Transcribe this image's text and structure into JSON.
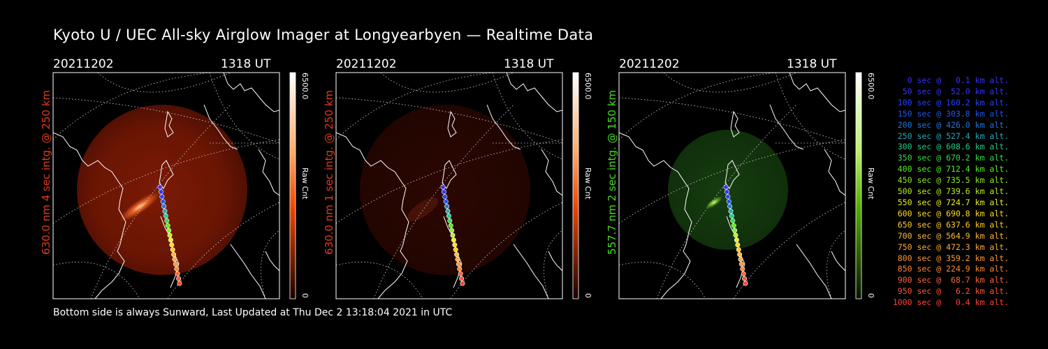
{
  "title": "Kyoto U / UEC All-sky Airglow Imager at Longyearbyen — Realtime Data",
  "footer": "Bottom side is always Sunward, Last Updated at Thu Dec  2 13:18:04 2021 in UTC",
  "panels": [
    {
      "date": "20211202",
      "time": "1318 UT",
      "side_label": "630.0 nm 4 sec intg. @ 250 km",
      "label_color": "#e23a1a",
      "cb_max": "6500.0",
      "cb_min": "0",
      "cb_unit": "Raw Cnt",
      "colorbar_top": "#ffffff",
      "colorbar_mid": "#ff5500",
      "colorbar_bottom": "#300000"
    },
    {
      "date": "20211202",
      "time": "1318 UT",
      "side_label": "630.0 nm 1 sec intg. @ 250 km",
      "label_color": "#e23a1a",
      "cb_max": "6500.0",
      "cb_min": "0",
      "cb_unit": "Raw Cnt",
      "colorbar_top": "#ffffff",
      "colorbar_mid": "#ff5500",
      "colorbar_bottom": "#300000"
    },
    {
      "date": "20211202",
      "time": "1318 UT",
      "side_label": "557.7 nm 2 sec intg. @ 150 km",
      "label_color": "#44dd22",
      "cb_max": "6500.0",
      "cb_min": "0",
      "cb_unit": "Raw Cnt",
      "colorbar_top": "#ffffff",
      "colorbar_mid": "#66cc00",
      "colorbar_bottom": "#0a2200"
    }
  ],
  "legend": [
    {
      "text": "  0 sec @   0.1 km alt.",
      "color": "#3333ff"
    },
    {
      "text": " 50 sec @  52.0 km alt.",
      "color": "#3333ff"
    },
    {
      "text": "100 sec @ 160.2 km alt.",
      "color": "#2244ff"
    },
    {
      "text": "150 sec @ 303.8 km alt.",
      "color": "#2255ee"
    },
    {
      "text": "200 sec @ 426.0 km alt.",
      "color": "#2277dd"
    },
    {
      "text": "250 sec @ 527.4 km alt.",
      "color": "#22aabb"
    },
    {
      "text": "300 sec @ 608.6 km alt.",
      "color": "#22cc88"
    },
    {
      "text": "350 sec @ 670.2 km alt.",
      "color": "#33dd44"
    },
    {
      "text": "400 sec @ 712.4 km alt.",
      "color": "#55ee22"
    },
    {
      "text": "450 sec @ 735.5 km alt.",
      "color": "#88ee22"
    },
    {
      "text": "500 sec @ 739.6 km alt.",
      "color": "#bbee22"
    },
    {
      "text": "550 sec @ 724.7 km alt.",
      "color": "#eeee22"
    },
    {
      "text": "600 sec @ 690.8 km alt.",
      "color": "#ffdd22"
    },
    {
      "text": "650 sec @ 637.6 km alt.",
      "color": "#ffcc22"
    },
    {
      "text": "700 sec @ 564.9 km alt.",
      "color": "#ffbb33"
    },
    {
      "text": "750 sec @ 472.3 km alt.",
      "color": "#ffaa33"
    },
    {
      "text": "800 sec @ 359.2 km alt.",
      "color": "#ff9933"
    },
    {
      "text": "850 sec @ 224.9 km alt.",
      "color": "#ff8833"
    },
    {
      "text": "900 sec @  68.7 km alt.",
      "color": "#ff6633"
    },
    {
      "text": "950 sec @   6.2 km alt.",
      "color": "#ff5533"
    },
    {
      "text": "1000 sec @   0.4 km alt.",
      "color": "#ff4433"
    }
  ]
}
